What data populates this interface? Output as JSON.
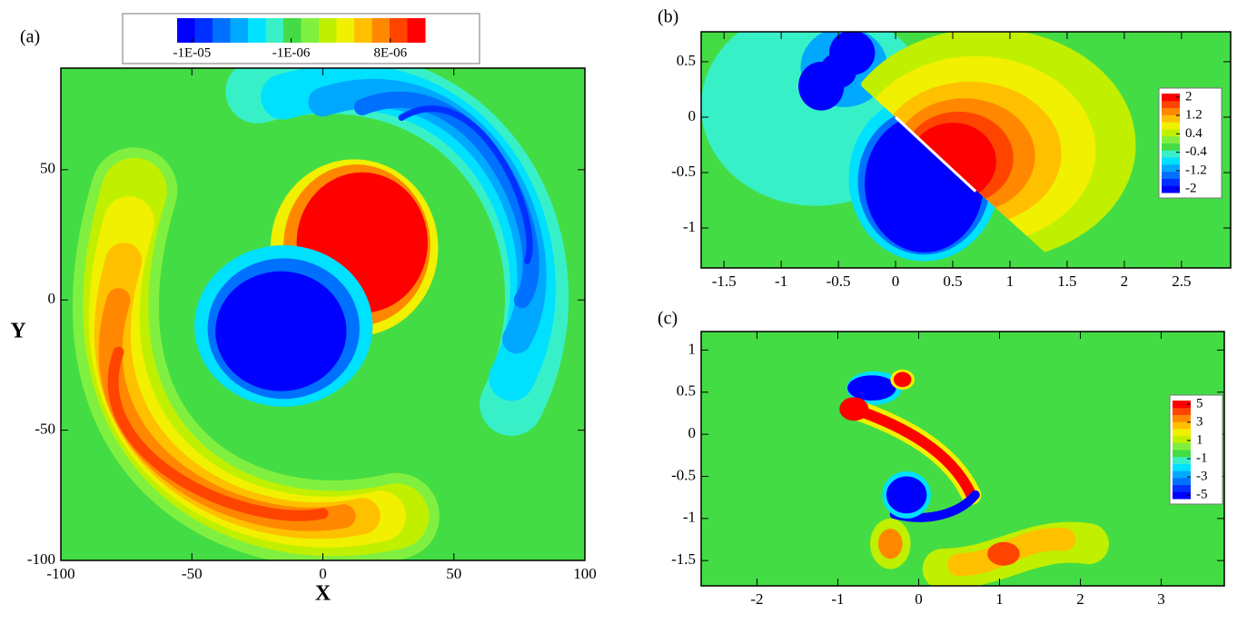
{
  "chart_data": [
    {
      "type": "contour",
      "label": "(a)",
      "xlabel": "X",
      "ylabel": "Y",
      "xlim": [
        -100,
        100
      ],
      "ylim": [
        -100,
        89
      ],
      "xticks": [
        -100,
        -50,
        0,
        50,
        100
      ],
      "yticks": [
        -100,
        -50,
        0,
        50
      ],
      "colorbar": {
        "orientation": "horizontal",
        "labels": [
          "-1E-05",
          "-1E-06",
          "8E-06"
        ]
      },
      "colormap": [
        "#0000ff",
        "#0030ff",
        "#0070ff",
        "#00a8ff",
        "#00e0ff",
        "#38f0c8",
        "#44dc44",
        "#80f040",
        "#c0f000",
        "#f0f000",
        "#ffc000",
        "#ff8800",
        "#ff4400",
        "#ff0000"
      ]
    },
    {
      "type": "contour",
      "label": "(b)",
      "xlim": [
        -1.7,
        2.93
      ],
      "ylim": [
        -1.36,
        0.77
      ],
      "xticks": [
        -1.5,
        -1,
        -0.5,
        0,
        0.5,
        1,
        1.5,
        2,
        2.5
      ],
      "yticks": [
        -1,
        -0.5,
        0,
        0.5
      ],
      "colorbar": {
        "orientation": "vertical",
        "ticks": [
          2,
          1.2,
          0.4,
          -0.4,
          -1.2,
          -2
        ]
      },
      "colormap": [
        "#0000ff",
        "#0030ff",
        "#0070ff",
        "#00a8ff",
        "#00e0ff",
        "#38f0c8",
        "#44dc44",
        "#80f040",
        "#c0f000",
        "#f0f000",
        "#ffc000",
        "#ff8800",
        "#ff4400",
        "#ff0000"
      ]
    },
    {
      "type": "contour",
      "label": "(c)",
      "xlim": [
        -2.69,
        3.78
      ],
      "ylim": [
        -1.8,
        1.22
      ],
      "xticks": [
        -2,
        -1,
        0,
        1,
        2,
        3
      ],
      "yticks": [
        -1.5,
        -1,
        -0.5,
        0,
        0.5,
        1
      ],
      "colorbar": {
        "orientation": "vertical",
        "ticks": [
          5,
          3,
          1,
          -1,
          -3,
          -5
        ]
      },
      "colormap": [
        "#0000ff",
        "#0030ff",
        "#0070ff",
        "#00a8ff",
        "#00e0ff",
        "#38f0c8",
        "#44dc44",
        "#80f040",
        "#c0f000",
        "#f0f000",
        "#ffc000",
        "#ff8800",
        "#ff4400",
        "#ff0000"
      ]
    }
  ]
}
